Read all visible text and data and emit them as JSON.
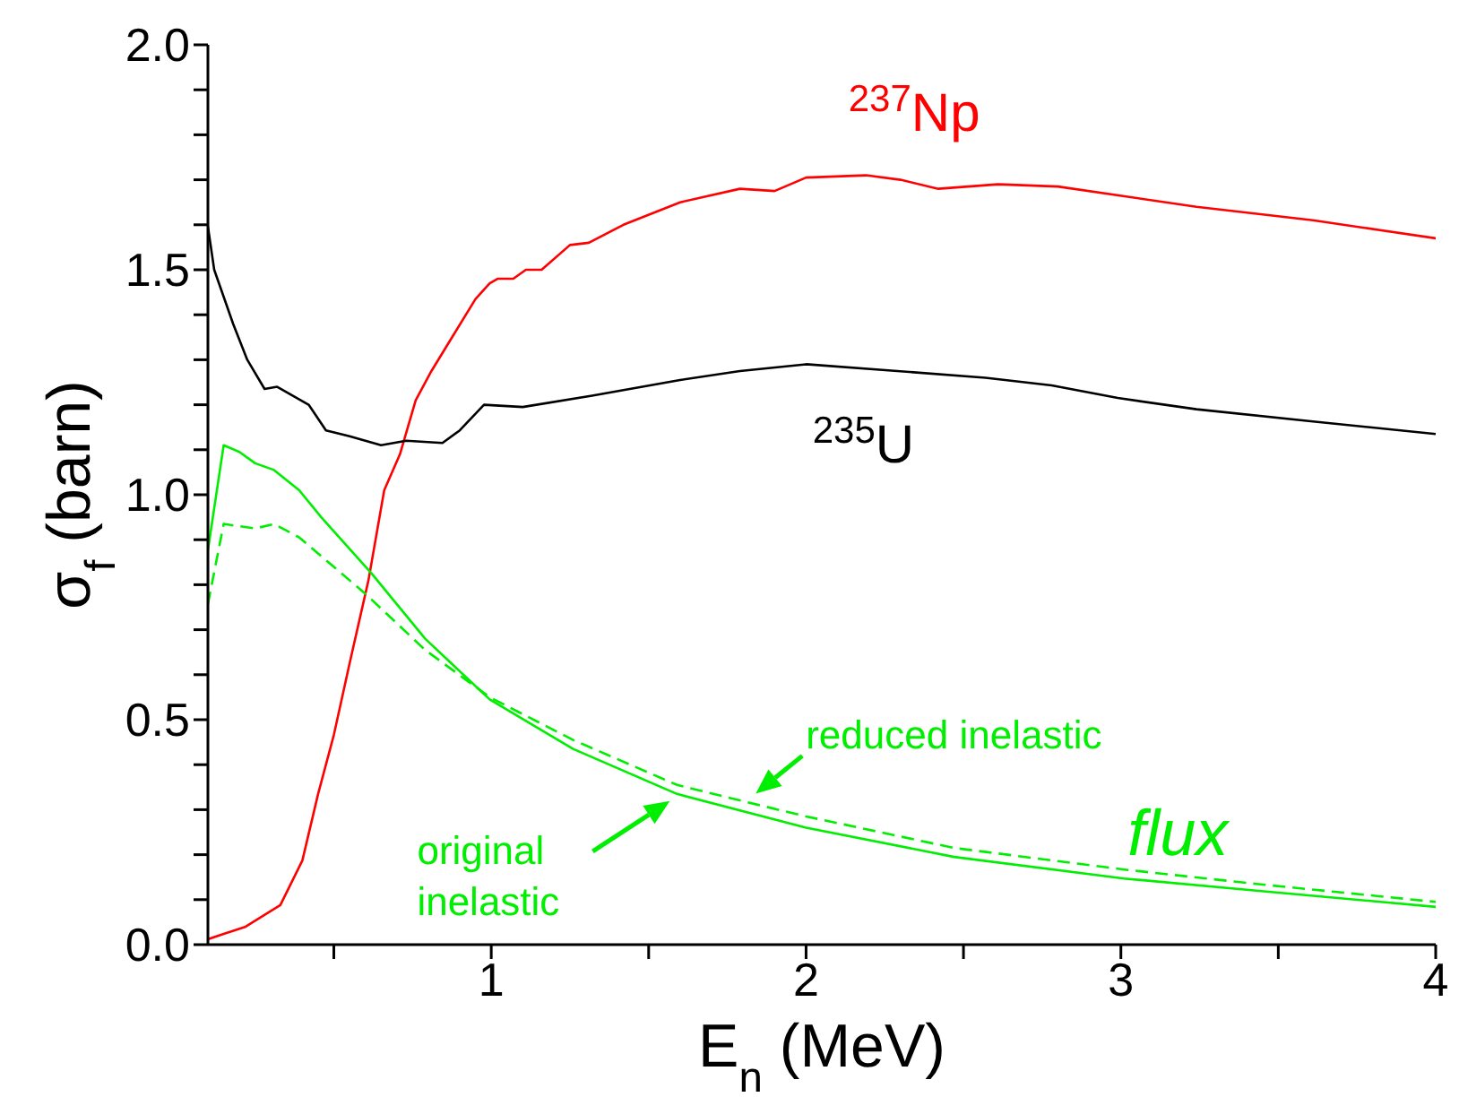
{
  "chart_data": {
    "type": "line",
    "xlabel": "E$_{n}$ (MeV)",
    "ylabel": "σ$_{f}$ (barn)",
    "xlim": [
      0.1,
      4
    ],
    "xticks": [
      {
        "value": 0.5,
        "label": null
      },
      1,
      {
        "value": 1.5,
        "label": null
      },
      2,
      {
        "value": 2.5,
        "label": null
      },
      3,
      {
        "value": 3.5,
        "label": null
      },
      4
    ],
    "ylim": [
      0,
      2
    ],
    "yticks": [
      {
        "value": 0,
        "label": "0.0"
      },
      {
        "value": 0.1,
        "label": null
      },
      {
        "value": 0.2,
        "label": null
      },
      {
        "value": 0.3,
        "label": null
      },
      {
        "value": 0.4,
        "label": null
      },
      {
        "value": 0.5,
        "label": "0.5"
      },
      {
        "value": 0.6,
        "label": null
      },
      {
        "value": 0.7,
        "label": null
      },
      {
        "value": 0.8,
        "label": null
      },
      {
        "value": 0.9,
        "label": null
      },
      {
        "value": 1,
        "label": "1.0"
      },
      {
        "value": 1.1,
        "label": null
      },
      {
        "value": 1.2,
        "label": null
      },
      {
        "value": 1.3,
        "label": null
      },
      {
        "value": 1.4,
        "label": null
      },
      {
        "value": 1.5,
        "label": "1.5"
      },
      {
        "value": 1.6,
        "label": null
      },
      {
        "value": 1.7,
        "label": null
      },
      {
        "value": 1.8,
        "label": null
      },
      {
        "value": 1.9,
        "label": null
      },
      {
        "value": 2,
        "label": "2.0"
      }
    ],
    "grid": false,
    "marker": "none",
    "line_style": "solid",
    "series": [
      {
        "name": "$^{237}$Np",
        "color": "#ff0000",
        "x": [
          0.1,
          0.22,
          0.33,
          0.4,
          0.45,
          0.5,
          0.55,
          0.61,
          0.66,
          0.71,
          0.76,
          0.81,
          0.88,
          0.95,
          0.995,
          1.02,
          1.07,
          1.11,
          1.16,
          1.25,
          1.31,
          1.42,
          1.6,
          1.79,
          1.9,
          2.0,
          2.19,
          2.3,
          2.42,
          2.61,
          2.8,
          3.24,
          3.61,
          4.0
        ],
        "values": [
          0.012,
          0.04,
          0.088,
          0.187,
          0.335,
          0.466,
          0.625,
          0.81,
          1.01,
          1.09,
          1.21,
          1.275,
          1.355,
          1.435,
          1.47,
          1.48,
          1.48,
          1.5,
          1.5,
          1.555,
          1.56,
          1.6,
          1.65,
          1.68,
          1.675,
          1.705,
          1.71,
          1.7,
          1.68,
          1.69,
          1.685,
          1.64,
          1.61,
          1.57
        ]
      },
      {
        "name": "$^{235}$U",
        "color": "#000000",
        "x": [
          0.1,
          0.12,
          0.18,
          0.225,
          0.28,
          0.32,
          0.42,
          0.475,
          0.55,
          0.65,
          0.73,
          0.845,
          0.9,
          0.977,
          1.1,
          1.32,
          1.6,
          1.79,
          2.0,
          2.29,
          2.57,
          2.78,
          2.99,
          3.24,
          3.61,
          4.0
        ],
        "values": [
          1.596,
          1.5,
          1.38,
          1.3,
          1.235,
          1.24,
          1.2,
          1.143,
          1.13,
          1.11,
          1.12,
          1.115,
          1.143,
          1.2,
          1.195,
          1.22,
          1.255,
          1.275,
          1.29,
          1.275,
          1.26,
          1.243,
          1.215,
          1.19,
          1.163,
          1.135
        ]
      },
      {
        "name": "original inelastic",
        "color": "#00ee00",
        "x": [
          0.1,
          0.15,
          0.2,
          0.25,
          0.31,
          0.39,
          0.46,
          0.62,
          0.79,
          0.995,
          1.26,
          1.59,
          2.0,
          2.47,
          3.01,
          3.43,
          4.0
        ],
        "values": [
          0.877,
          1.11,
          1.095,
          1.07,
          1.055,
          1.01,
          0.95,
          0.825,
          0.68,
          0.545,
          0.435,
          0.335,
          0.26,
          0.195,
          0.147,
          0.12,
          0.084
        ]
      },
      {
        "name": "reduced inelastic",
        "color": "#00ee00",
        "line_style": "dashed",
        "x": [
          0.1,
          0.15,
          0.25,
          0.31,
          0.39,
          0.6,
          0.79,
          0.995,
          1.26,
          1.59,
          1.84,
          2.0,
          2.47,
          3.01,
          3.43,
          4.0
        ],
        "values": [
          0.757,
          0.935,
          0.925,
          0.935,
          0.905,
          0.78,
          0.655,
          0.55,
          0.455,
          0.355,
          0.312,
          0.285,
          0.215,
          0.167,
          0.135,
          0.095
        ]
      }
    ],
    "annotations": [
      "flux"
    ]
  }
}
